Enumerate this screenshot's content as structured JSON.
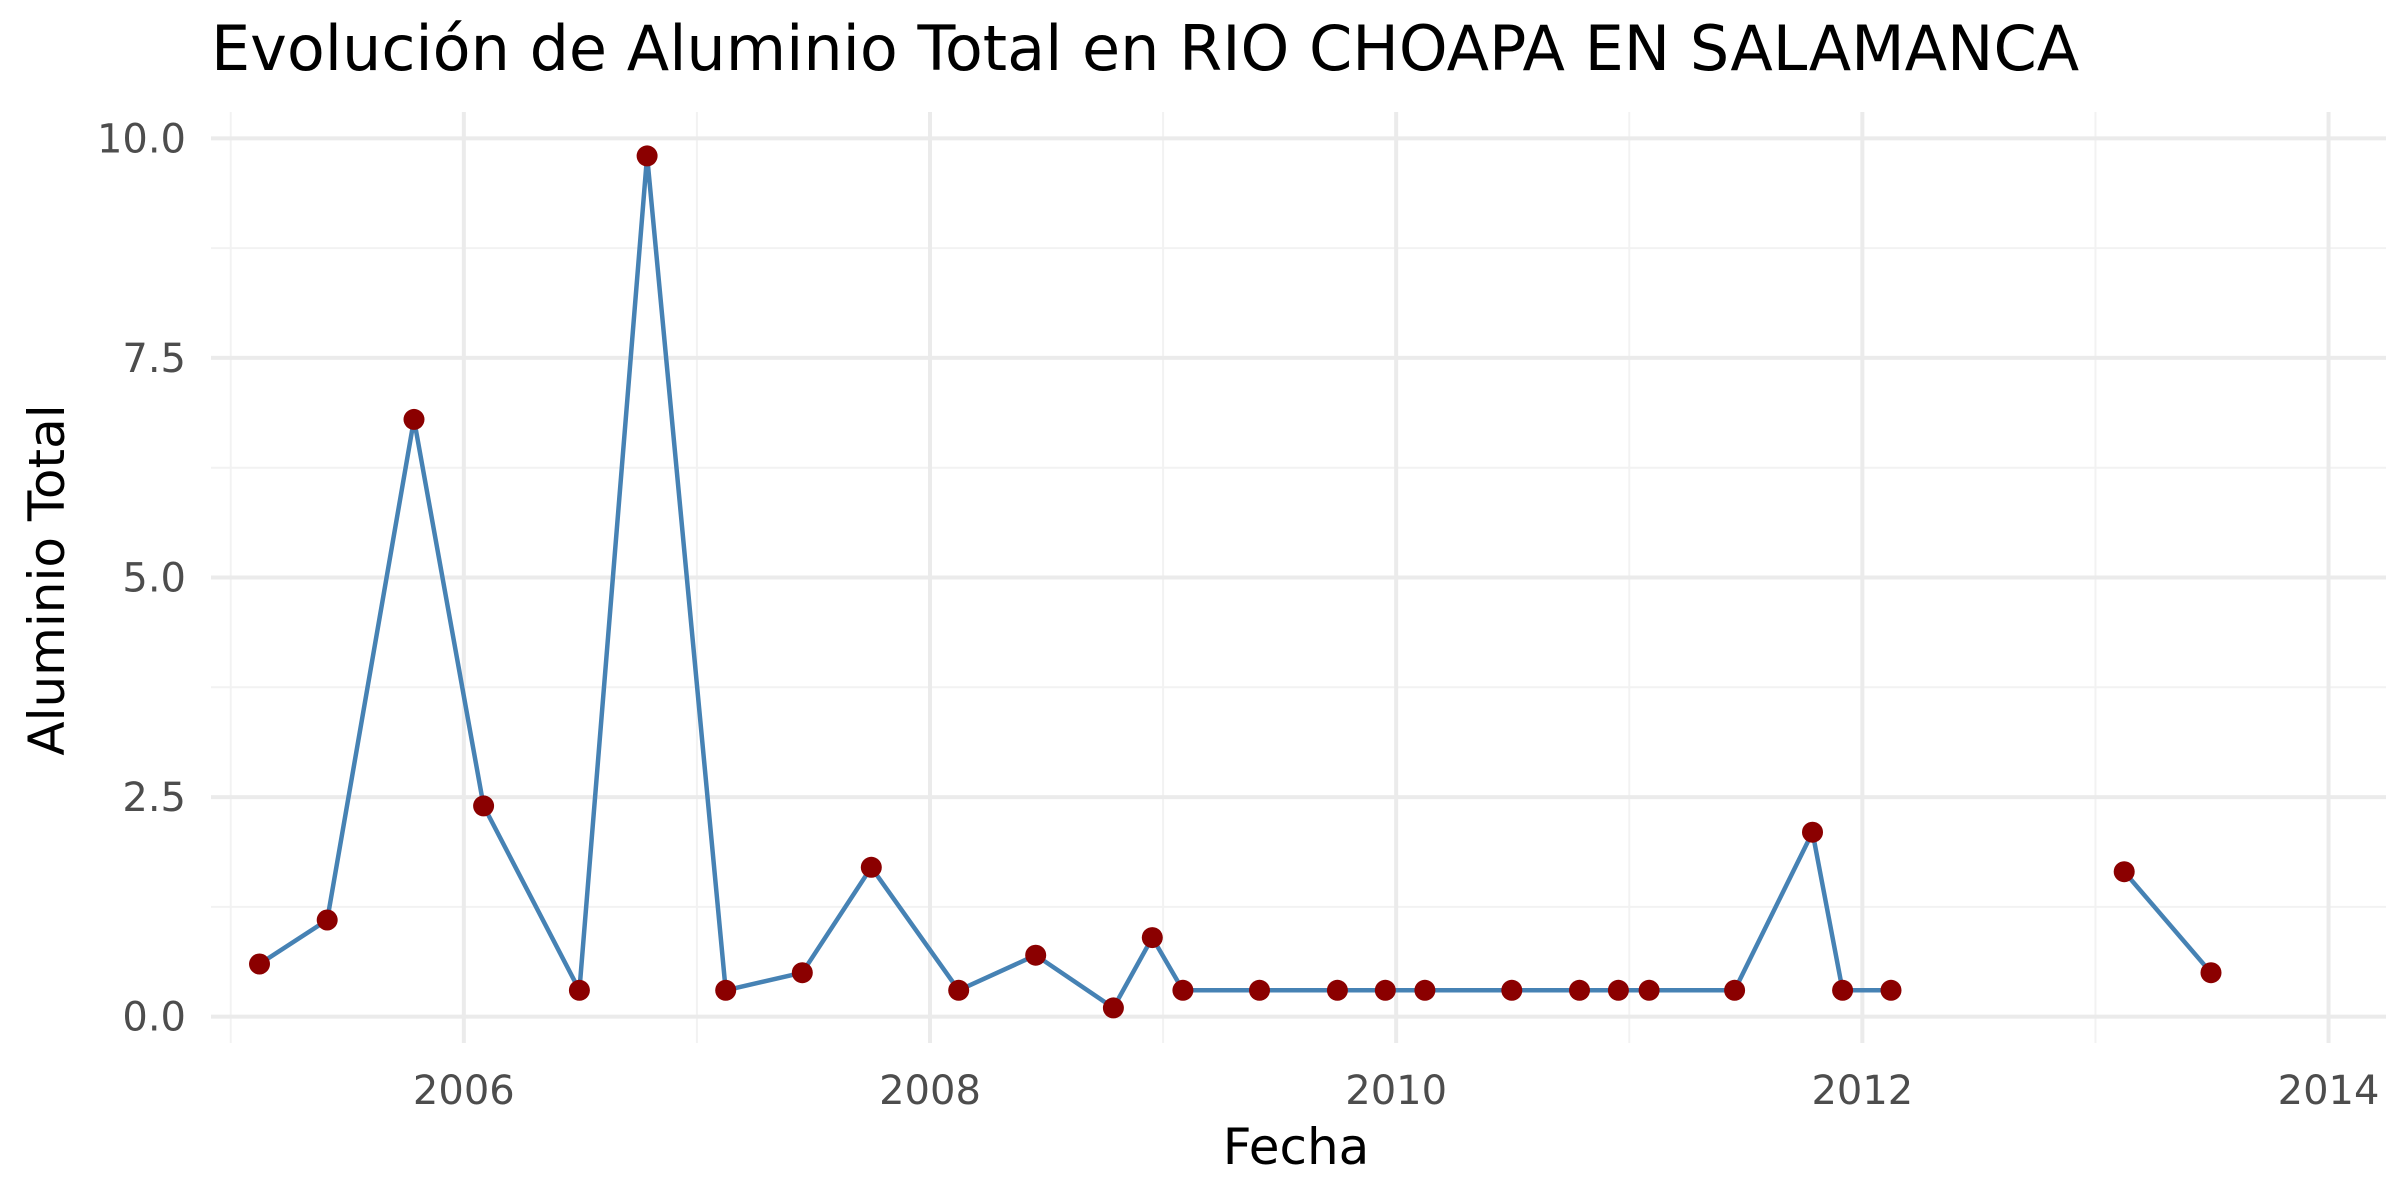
{
  "chart_data": {
    "type": "line",
    "title": "Evolución de Aluminio Total en RIO CHOAPA EN SALAMANCA",
    "xlabel": "Fecha",
    "ylabel": "Aluminio Total",
    "x_ticks": [
      "2006",
      "2008",
      "2010",
      "2012",
      "2014"
    ],
    "y_ticks": [
      "0.0",
      "2.5",
      "5.0",
      "7.5",
      "10.0"
    ],
    "xlim": [
      "2004-12-01",
      "2014-04-01"
    ],
    "ylim": [
      -0.3,
      10.3
    ],
    "grid": true,
    "line_color": "#4682B4",
    "point_color": "#8B0000",
    "series": [
      {
        "segments": [
          [
            {
              "x": "2005-02-15",
              "y": 0.6
            },
            {
              "x": "2005-06-01",
              "y": 1.1
            },
            {
              "x": "2005-10-15",
              "y": 6.8
            },
            {
              "x": "2006-02-01",
              "y": 2.4
            },
            {
              "x": "2006-07-01",
              "y": 0.3
            },
            {
              "x": "2006-10-15",
              "y": 9.8
            },
            {
              "x": "2007-02-15",
              "y": 0.3
            },
            {
              "x": "2007-06-15",
              "y": 0.5
            },
            {
              "x": "2007-10-01",
              "y": 1.7
            },
            {
              "x": "2008-02-15",
              "y": 0.3
            },
            {
              "x": "2008-06-15",
              "y": 0.7
            },
            {
              "x": "2008-10-15",
              "y": 0.1
            },
            {
              "x": "2008-12-15",
              "y": 0.9
            },
            {
              "x": "2009-02-01",
              "y": 0.3
            },
            {
              "x": "2009-06-01",
              "y": 0.3
            },
            {
              "x": "2009-10-01",
              "y": 0.3
            },
            {
              "x": "2009-12-15",
              "y": 0.3
            },
            {
              "x": "2010-02-15",
              "y": 0.3
            },
            {
              "x": "2010-07-01",
              "y": 0.3
            },
            {
              "x": "2010-10-15",
              "y": 0.3
            },
            {
              "x": "2010-12-15",
              "y": 0.3
            },
            {
              "x": "2011-02-01",
              "y": 0.3
            },
            {
              "x": "2011-06-15",
              "y": 0.3
            },
            {
              "x": "2011-10-15",
              "y": 2.1
            },
            {
              "x": "2011-12-01",
              "y": 0.3
            },
            {
              "x": "2012-02-15",
              "y": 0.3
            }
          ],
          [
            {
              "x": "2013-02-15",
              "y": 1.65
            },
            {
              "x": "2013-07-01",
              "y": 0.5
            }
          ]
        ]
      }
    ]
  }
}
